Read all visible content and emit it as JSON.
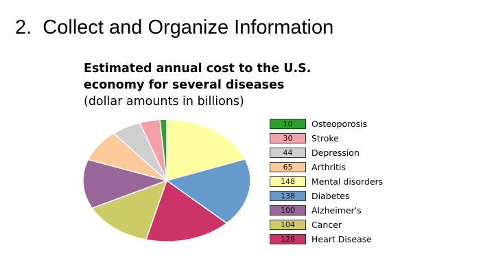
{
  "slide": {
    "title": "2.  Collect and Organize Information"
  },
  "chart_data": {
    "type": "pie",
    "title_lines": [
      "Estimated annual cost to the U.S.",
      "economy for several diseases"
    ],
    "subtitle": "(dollar amounts in billions)",
    "slices": [
      {
        "label": "Osteoporosis",
        "value": 10,
        "color": "#2e9e2e"
      },
      {
        "label": "Stroke",
        "value": 30,
        "color": "#f5a0a8"
      },
      {
        "label": "Depression",
        "value": 44,
        "color": "#cfcfcf"
      },
      {
        "label": "Arthritis",
        "value": 65,
        "color": "#fcc99a"
      },
      {
        "label": "Mental disorders",
        "value": 148,
        "color": "#ffffa0"
      },
      {
        "label": "Diabetes",
        "value": 138,
        "color": "#6699cc"
      },
      {
        "label": "Alzheimer's",
        "value": 100,
        "color": "#996699"
      },
      {
        "label": "Cancer",
        "value": 104,
        "color": "#cccc66"
      },
      {
        "label": "Heart Disease",
        "value": 128,
        "color": "#cc3366"
      }
    ],
    "draw_order": [
      "Mental disorders",
      "Diabetes",
      "Heart Disease",
      "Cancer",
      "Alzheimer's",
      "Arthritis",
      "Depression",
      "Stroke",
      "Osteoporosis"
    ],
    "legend_position": "right"
  }
}
